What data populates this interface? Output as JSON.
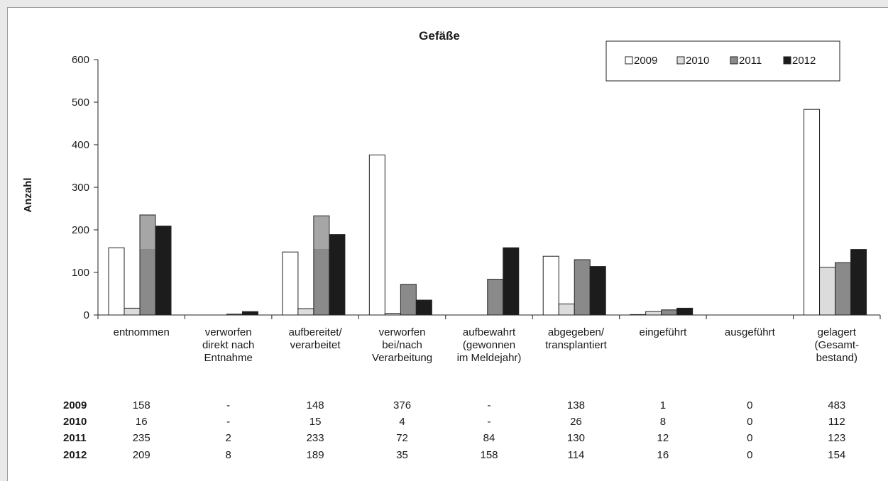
{
  "chart_data": {
    "type": "bar",
    "title": "Gefäße",
    "xlabel": "",
    "ylabel": "Anzahl",
    "ylim": [
      0,
      600
    ],
    "yticks": [
      0,
      100,
      200,
      300,
      400,
      500,
      600
    ],
    "grid": false,
    "legend_position": "top-right",
    "categories": [
      [
        "entnommen"
      ],
      [
        "verworfen",
        "direkt nach",
        "Entnahme"
      ],
      [
        "aufbereitet/",
        "verarbeitet"
      ],
      [
        "verworfen",
        "bei/nach",
        "Verarbeitung"
      ],
      [
        "aufbewahrt",
        "(gewonnen",
        "im Meldejahr)"
      ],
      [
        "abgegeben/",
        "transplantiert"
      ],
      [
        "eingeführt"
      ],
      [
        "ausgeführt"
      ],
      [
        "gelagert",
        "(Gesamt-",
        "bestand)"
      ]
    ],
    "series": [
      {
        "name": "2009",
        "color": "#ffffff",
        "values": [
          158,
          null,
          148,
          376,
          null,
          138,
          1,
          0,
          483
        ],
        "labels": [
          "158",
          "-",
          "148",
          "376",
          "-",
          "138",
          "1",
          "0",
          "483"
        ]
      },
      {
        "name": "2010",
        "color": "#dcdcdc",
        "values": [
          16,
          null,
          15,
          4,
          null,
          26,
          8,
          0,
          112
        ],
        "labels": [
          "16",
          "-",
          "15",
          "4",
          "-",
          "26",
          "8",
          "0",
          "112"
        ]
      },
      {
        "name": "2011",
        "color": "#8a8a8a",
        "values": [
          235,
          2,
          233,
          72,
          84,
          130,
          12,
          0,
          123
        ],
        "labels": [
          "235",
          "2",
          "233",
          "72",
          "84",
          "130",
          "12",
          "0",
          "123"
        ]
      },
      {
        "name": "2012",
        "color": "#1c1c1c",
        "values": [
          209,
          8,
          189,
          35,
          158,
          114,
          16,
          0,
          154
        ],
        "labels": [
          "209",
          "8",
          "189",
          "35",
          "158",
          "114",
          "16",
          "0",
          "154"
        ]
      }
    ],
    "overlays": [
      {
        "series": "2011",
        "category_index": 0,
        "from": 155,
        "to": 235,
        "color": "#a6a6a6"
      },
      {
        "series": "2011",
        "category_index": 2,
        "from": 155,
        "to": 233,
        "color": "#a6a6a6"
      }
    ]
  }
}
